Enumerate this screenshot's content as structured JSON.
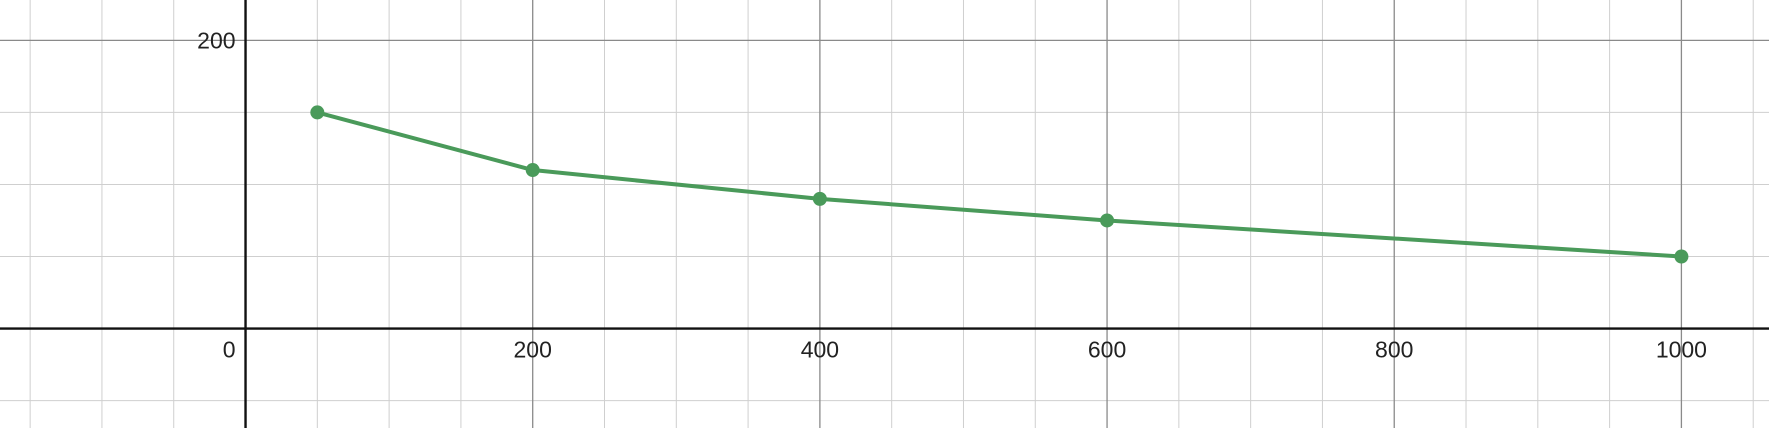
{
  "chart_data": {
    "type": "line",
    "title": "",
    "xlabel": "",
    "ylabel": "",
    "xlim": [
      -171,
      1061
    ],
    "ylim": [
      -69,
      228
    ],
    "x_ticks": [
      {
        "value": 200,
        "label": "200"
      },
      {
        "value": 400,
        "label": "400"
      },
      {
        "value": 600,
        "label": "600"
      },
      {
        "value": 800,
        "label": "800"
      },
      {
        "value": 1000,
        "label": "1000"
      }
    ],
    "y_ticks": [
      {
        "value": 200,
        "label": "200"
      }
    ],
    "origin_label": "0",
    "grid": true,
    "grid_minor_x_step": 50,
    "grid_major_x_step": 200,
    "grid_minor_y_step": 50,
    "grid_major_y_step": 200,
    "series": [
      {
        "color": "#4a9a5a",
        "points": [
          {
            "x": 50,
            "y": 150
          },
          {
            "x": 200,
            "y": 110
          },
          {
            "x": 400,
            "y": 90
          },
          {
            "x": 600,
            "y": 75
          },
          {
            "x": 1000,
            "y": 50
          }
        ]
      }
    ]
  }
}
